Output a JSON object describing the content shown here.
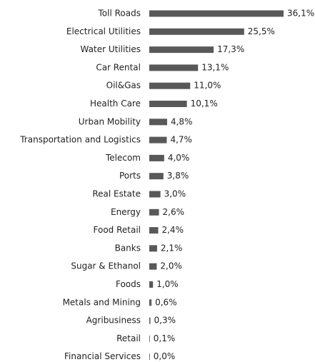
{
  "chart_data": {
    "type": "bar",
    "orientation": "horizontal",
    "color": "#595959",
    "categories": [
      "Toll Roads",
      "Electrical Utilities",
      "Water Utilities",
      "Car Rental",
      "Oil&Gas",
      "Health Care",
      "Urban Mobility",
      "Transportation and Logistics",
      "Telecom",
      "Ports",
      "Real Estate",
      "Energy",
      "Food Retail",
      "Banks",
      "Sugar & Ethanol",
      "Foods",
      "Metals and Mining",
      "Agribusiness",
      "Retail",
      "Financial Services"
    ],
    "values": [
      36.1,
      25.5,
      17.3,
      13.1,
      11.0,
      10.1,
      4.8,
      4.7,
      4.0,
      3.8,
      3.0,
      2.6,
      2.4,
      2.1,
      2.0,
      1.0,
      0.6,
      0.3,
      0.1,
      0.0
    ],
    "value_labels": [
      "36,1%",
      "25,5%",
      "17,3%",
      "13,1%",
      "11,0%",
      "10,1%",
      "4,8%",
      "4,7%",
      "4,0%",
      "3,8%",
      "3,0%",
      "2,6%",
      "2,4%",
      "2,1%",
      "2,0%",
      "1,0%",
      "0,6%",
      "0,3%",
      "0,1%",
      "0,0%"
    ]
  }
}
